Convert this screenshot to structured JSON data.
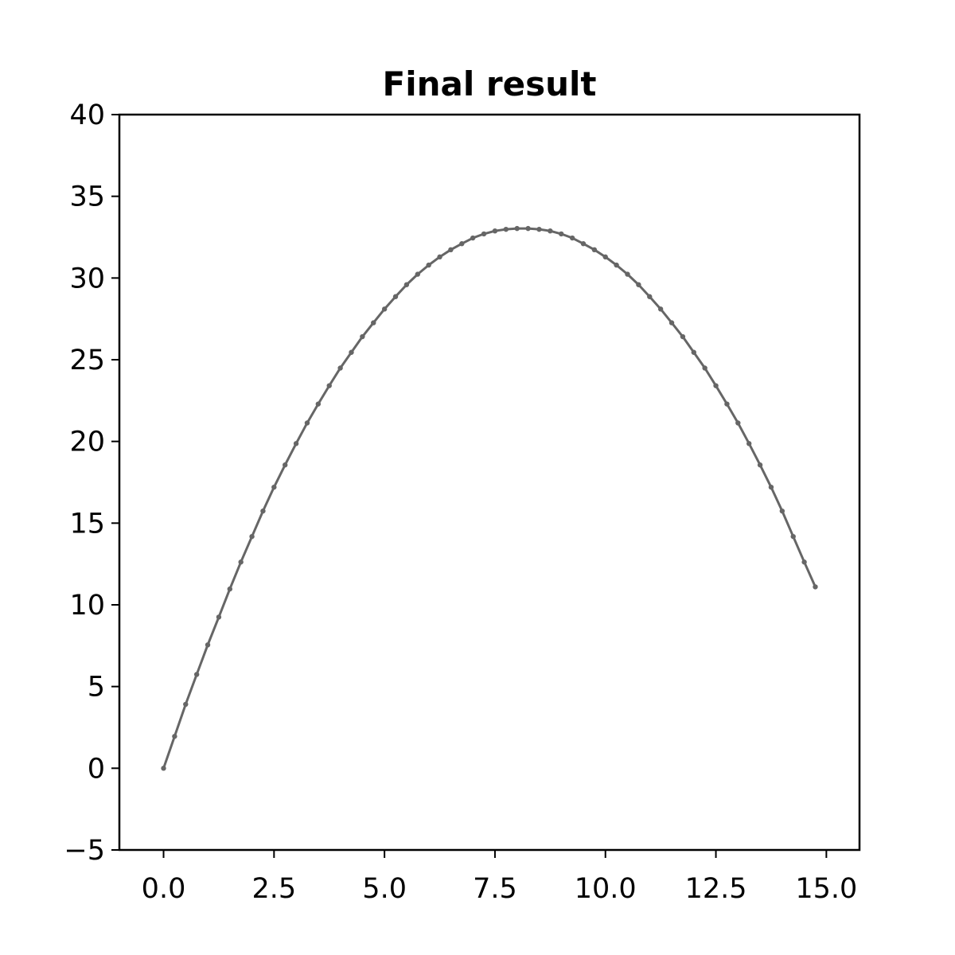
{
  "chart_data": {
    "type": "line",
    "title": "Final result",
    "xlabel": "",
    "ylabel": "",
    "xlim": [
      -1.0,
      15.75
    ],
    "ylim": [
      -5,
      40
    ],
    "x_ticks": [
      0.0,
      2.5,
      5.0,
      7.5,
      10.0,
      12.5,
      15.0
    ],
    "x_tick_labels": [
      "0.0",
      "2.5",
      "5.0",
      "7.5",
      "10.0",
      "12.5",
      "15.0"
    ],
    "y_ticks": [
      -5,
      0,
      5,
      10,
      15,
      20,
      25,
      30,
      35,
      40
    ],
    "y_tick_labels": [
      "−5",
      "0",
      "5",
      "10",
      "15",
      "20",
      "25",
      "30",
      "35",
      "40"
    ],
    "grid": false,
    "legend": "none",
    "series": [
      {
        "color": "#666666",
        "marker": "dot",
        "x": [
          0.0,
          0.25,
          0.5,
          0.75,
          1.0,
          1.25,
          1.5,
          1.75,
          2.0,
          2.25,
          2.5,
          2.75,
          3.0,
          3.25,
          3.5,
          3.75,
          4.0,
          4.25,
          4.5,
          4.75,
          5.0,
          5.25,
          5.5,
          5.75,
          6.0,
          6.25,
          6.5,
          6.75,
          7.0,
          7.25,
          7.5,
          7.75,
          8.0,
          8.25,
          8.5,
          8.75,
          9.0,
          9.25,
          9.5,
          9.75,
          10.0,
          10.25,
          10.5,
          10.75,
          11.0,
          11.25,
          11.5,
          11.75,
          12.0,
          12.25,
          12.5,
          12.75,
          13.0,
          13.25,
          13.5,
          13.75,
          14.0,
          14.25,
          14.5,
          14.75
        ],
        "y": [
          0.0,
          1.95,
          3.91,
          5.74,
          7.55,
          9.25,
          10.97,
          12.62,
          14.18,
          15.74,
          17.2,
          18.56,
          19.87,
          21.13,
          22.29,
          23.41,
          24.49,
          25.45,
          26.41,
          27.26,
          28.1,
          28.86,
          29.59,
          30.23,
          30.79,
          31.29,
          31.73,
          32.1,
          32.45,
          32.7,
          32.88,
          32.98,
          33.03,
          33.03,
          32.98,
          32.88,
          32.7,
          32.45,
          32.1,
          31.73,
          31.29,
          30.79,
          30.23,
          29.59,
          28.86,
          28.1,
          27.26,
          26.41,
          25.45,
          24.49,
          23.41,
          22.29,
          21.13,
          19.87,
          18.56,
          17.2,
          15.74,
          14.18,
          12.62,
          11.1
        ]
      }
    ]
  }
}
